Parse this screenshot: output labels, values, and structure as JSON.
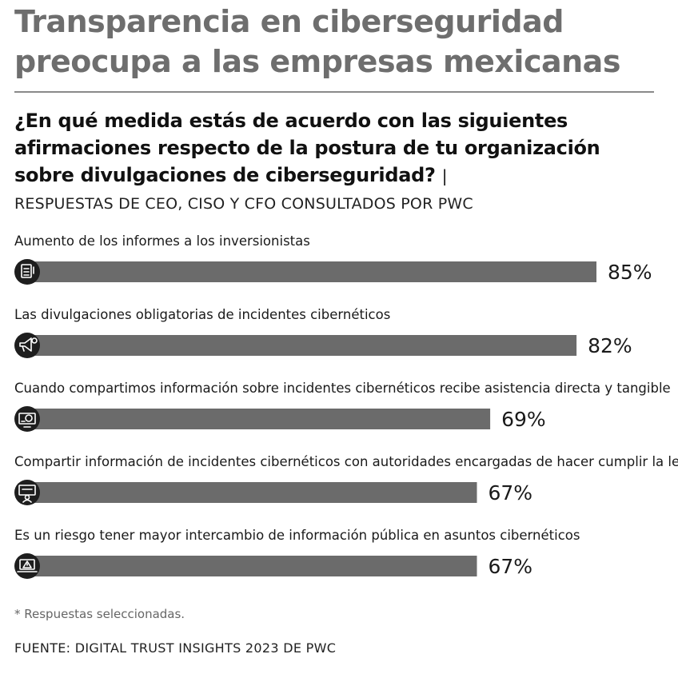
{
  "header": {
    "title_line1": "Transparencia en ciberseguridad",
    "title_line2": "preocupa a las empresas mexicanas",
    "question_line1": "¿En qué medida estás de acuerdo con las siguientes",
    "question_line2": "afirmaciones respecto de la postura de tu organización",
    "question_line3": "sobre divulgaciones de ciberseguridad?",
    "question_separator": "|",
    "subtitle": "RESPUESTAS DE CEO, CISO Y CFO CONSULTADOS POR PWC"
  },
  "chart_data": {
    "type": "bar",
    "orientation": "horizontal",
    "unit": "%",
    "categories": [
      "Aumento de los informes a los inversionistas",
      "Las divulgaciones obligatorias de incidentes cibernéticos",
      "Cuando compartimos información sobre incidentes cibernéticos recibe asistencia directa y tangible",
      "Compartir información de incidentes cibernéticos con autoridades encargadas de hacer cumplir la ley",
      "Es un riesgo tener mayor intercambio de información pública en asuntos cibernéticos"
    ],
    "values": [
      85,
      82,
      69,
      67,
      67
    ],
    "value_labels": [
      "85%",
      "82%",
      "69%",
      "67%",
      "67%"
    ],
    "icons": [
      "report-icon",
      "megaphone-icon",
      "target-presentation-icon",
      "monitor-person-icon",
      "laptop-warning-icon"
    ],
    "bar_color": "#6b6b6b",
    "icon_color": "#1e1e1e",
    "grid": false,
    "legend": "none"
  },
  "footer": {
    "footnote": "* Respuestas seleccionadas.",
    "source": "FUENTE: DIGITAL TRUST INSIGHTS 2023 DE PWC"
  }
}
